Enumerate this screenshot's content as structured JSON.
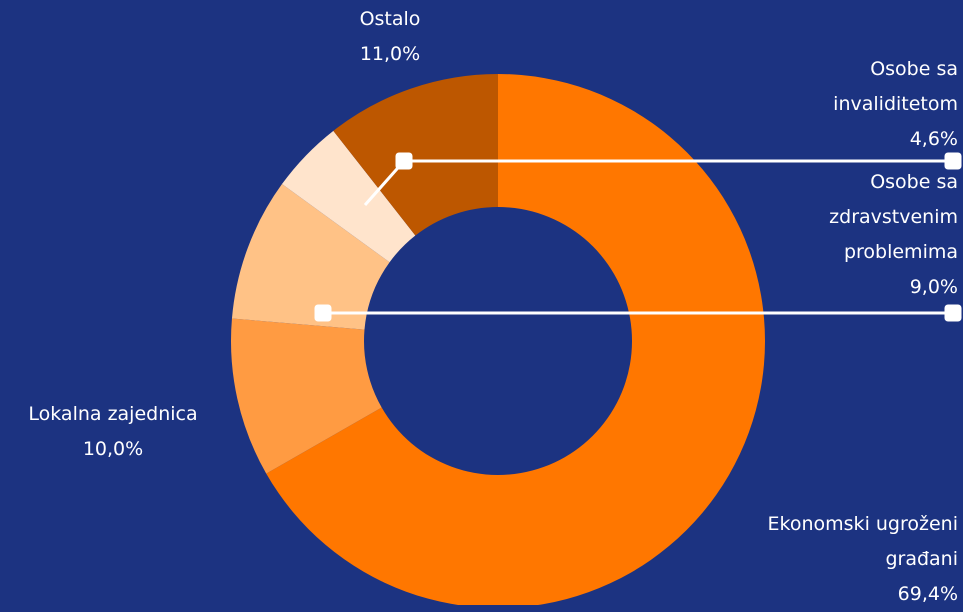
{
  "chart_data": {
    "type": "donut",
    "categories": [
      "Ekonomski ugroženi građani",
      "Lokalna zajednica",
      "Osobe sa zdravstvenim problemima",
      "Osobe sa invaliditetom",
      "Ostalo"
    ],
    "values": [
      69.4,
      10.0,
      9.0,
      4.6,
      11.0
    ],
    "value_labels": [
      "69,4%",
      "10,0%",
      "9,0%",
      "4,6%",
      "11,0%"
    ],
    "colors": [
      "#ff7700",
      "#ff9b42",
      "#ffc286",
      "#ffe4cc",
      "#bd5700"
    ]
  }
}
